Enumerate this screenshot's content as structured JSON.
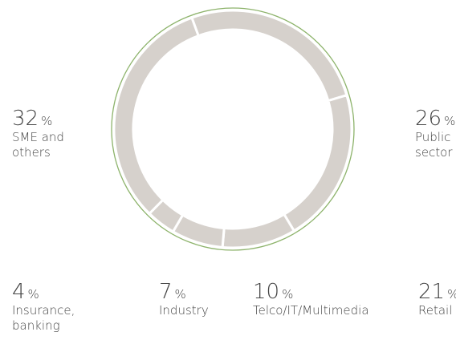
{
  "chart_data": {
    "type": "donut",
    "unit": "%",
    "categories": [
      "Public sector",
      "Retail",
      "Telco/IT/Multimedia",
      "Industry",
      "Insurance, banking",
      "SME and others"
    ],
    "values": [
      26,
      21,
      10,
      7,
      4,
      32
    ],
    "color": "#d6d1cc",
    "outline_color": "#8db36b"
  }
}
